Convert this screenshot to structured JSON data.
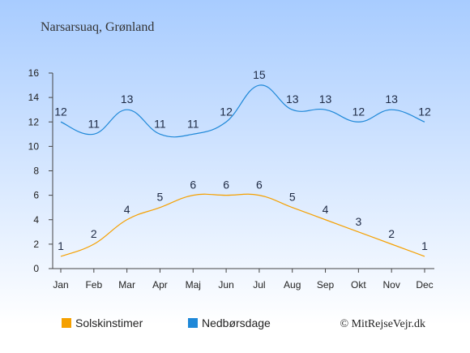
{
  "title": "Narsarsuaq, Grønland",
  "copyright": "© MitRejseVejr.dk",
  "colors": {
    "sun": "#f5a000",
    "rain": "#1e88d8",
    "sky_top": "#a8ccff",
    "sky_bottom": "#ffffff"
  },
  "chart_data": {
    "type": "line",
    "categories": [
      "Jan",
      "Feb",
      "Mar",
      "Apr",
      "Maj",
      "Jun",
      "Jul",
      "Aug",
      "Sep",
      "Okt",
      "Nov",
      "Dec"
    ],
    "series": [
      {
        "name": "Solskinstimer",
        "values": [
          1,
          2,
          4,
          5,
          6,
          6,
          6,
          5,
          4,
          3,
          2,
          1
        ],
        "color": "#f5a000"
      },
      {
        "name": "Nedbørsdage",
        "values": [
          12,
          11,
          13,
          11,
          11,
          12,
          15,
          13,
          13,
          12,
          13,
          12
        ],
        "color": "#1e88d8"
      }
    ],
    "yticks": [
      0,
      2,
      4,
      6,
      8,
      10,
      12,
      14,
      16
    ],
    "ylim": [
      0,
      16
    ],
    "grid": false,
    "legend_position": "bottom-left"
  }
}
